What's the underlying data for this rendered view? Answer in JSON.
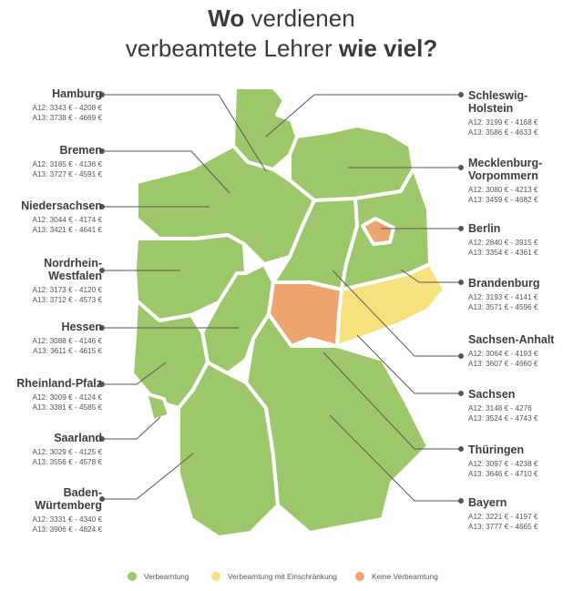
{
  "title": {
    "line1_bold": "Wo",
    "line1_rest": "verdienen",
    "line2_rest": "verbeamtete Lehrer",
    "line2_bold": "wie viel?"
  },
  "colors": {
    "verbeamtung": "#9dc76b",
    "einschraenkung": "#f5e27c",
    "keine": "#eea46f",
    "line": "#555555",
    "border": "#ffffff"
  },
  "states_left": [
    {
      "name_lines": [
        "Hamburg"
      ],
      "a12": "A12: 3343 € - 4208 €",
      "a13": "A13: 3738 € - 4669 €"
    },
    {
      "name_lines": [
        "Bremen"
      ],
      "a12": "A12: 3185 € - 4136 €",
      "a13": "A13: 3727 € - 4591 €"
    },
    {
      "name_lines": [
        "Niedersachsen"
      ],
      "a12": "A12: 3044 € - 4174 €",
      "a13": "A13: 3421 € - 4641 €"
    },
    {
      "name_lines": [
        "Nordrhein-",
        "Westfalen"
      ],
      "a12": "A12: 3173 € - 4120 €",
      "a13": "A13: 3712 € - 4573 €"
    },
    {
      "name_lines": [
        "Hessen"
      ],
      "a12": "A12: 3088 € - 4146 €",
      "a13": "A13: 3611 € - 4615 €"
    },
    {
      "name_lines": [
        "Rheinland-Pfalz"
      ],
      "a12": "A12: 3009 € - 4124 €",
      "a13": "A13: 3381 € - 4585 €"
    },
    {
      "name_lines": [
        "Saarland"
      ],
      "a12": "A12: 3029 € - 4125 €",
      "a13": "A13: 3556 € - 4578 €"
    },
    {
      "name_lines": [
        "Baden-",
        "Würtemberg"
      ],
      "a12": "A12: 3331 € - 4340 €",
      "a13": "A13: 3906 € - 4824 €"
    }
  ],
  "states_right": [
    {
      "name_lines": [
        "Schleswig-",
        "Holstein"
      ],
      "a12": "A12: 3199 € - 4168 €",
      "a13": "A13: 3586 € - 4633 €"
    },
    {
      "name_lines": [
        "Mecklenburg-",
        "Vorpommern"
      ],
      "a12": "A12: 3080 € - 4213 €",
      "a13": "A13: 3459 € - 4682 €"
    },
    {
      "name_lines": [
        "Berlin"
      ],
      "a12": "A12: 2840 € - 3915 €",
      "a13": "A13: 3354 € - 4361 €"
    },
    {
      "name_lines": [
        "Brandenburg"
      ],
      "a12": "A12: 3193 € - 4141 €",
      "a13": "A13: 3571 € - 4596 €"
    },
    {
      "name_lines": [
        "Sachsen-Anhalt"
      ],
      "a12": "A12: 3064 € - 4193 €",
      "a13": "A13: 3607 € - 4660 €"
    },
    {
      "name_lines": [
        "Sachsen"
      ],
      "a12": "A12: 3148 € - 4276",
      "a13": "A13: 3524 € - 4743 €"
    },
    {
      "name_lines": [
        "Thüringen"
      ],
      "a12": "A12: 3097 € - 4238 €",
      "a13": "A13: 3646 € - 4710 €"
    },
    {
      "name_lines": [
        "Bayern"
      ],
      "a12": "A12: 3221 € - 4197 €",
      "a13": "A13: 3777 € - 4665 €"
    }
  ],
  "legend": [
    {
      "label": "Verbeamtung",
      "color": "#9dc76b"
    },
    {
      "label": "Verbeamtung mit Einschränkung",
      "color": "#f5e27c"
    },
    {
      "label": "Keine Verbeamtung",
      "color": "#eea46f"
    }
  ]
}
